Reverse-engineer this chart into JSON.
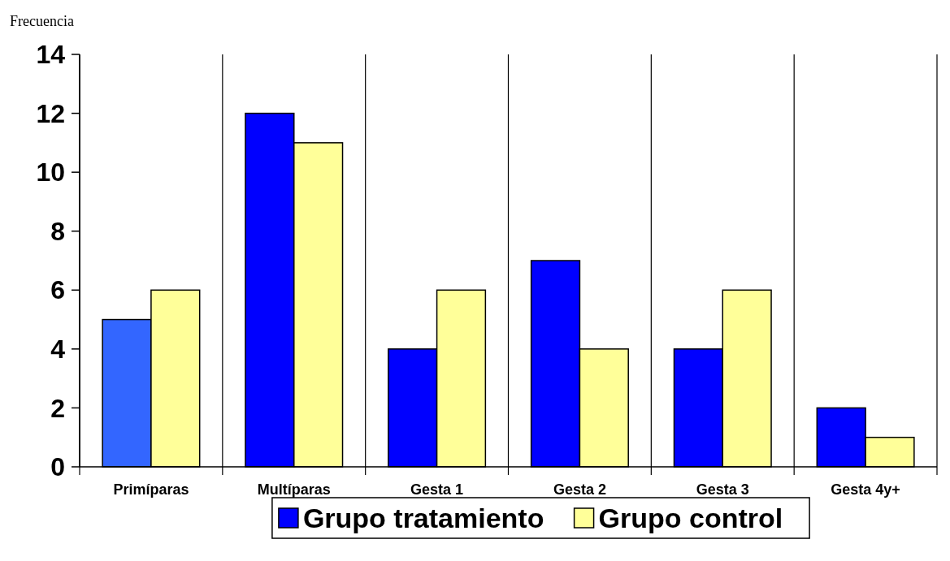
{
  "chart_data": {
    "type": "bar",
    "ylabel": "Frecuencia",
    "categories": [
      "Primíparas",
      "Multíparas",
      "Gesta 1",
      "Gesta 2",
      "Gesta 3",
      "Gesta 4y+"
    ],
    "series": [
      {
        "name": "Grupo tratamiento",
        "color": "#0000ff",
        "colors": [
          "#3366ff",
          "#0000ff",
          "#0000ff",
          "#0000ff",
          "#0000ff",
          "#0000ff"
        ],
        "values": [
          5,
          12,
          4,
          7,
          4,
          2
        ]
      },
      {
        "name": "Grupo control",
        "color": "#ffff99",
        "values": [
          6,
          11,
          6,
          4,
          6,
          1
        ]
      }
    ],
    "ylim": [
      0,
      14
    ],
    "yticks": [
      0,
      2,
      4,
      6,
      8,
      10,
      12,
      14
    ],
    "grid": "x",
    "legend": "bottom"
  }
}
